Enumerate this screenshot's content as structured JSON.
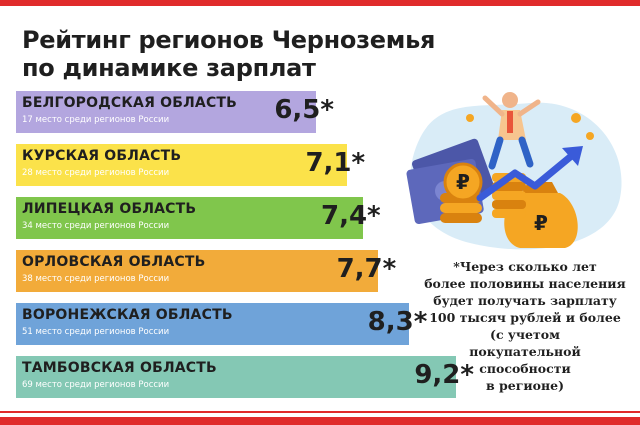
{
  "title": {
    "line1": "Рейтинг регионов Черноземья",
    "line2": "по динамике зарплат"
  },
  "chart_data": {
    "type": "bar",
    "orientation": "horizontal",
    "categories": [
      "БЕЛГОРОДСКАЯ ОБЛАСТЬ",
      "КУРСКАЯ ОБЛАСТЬ",
      "ЛИПЕЦКАЯ ОБЛАСТЬ",
      "ОРЛОВСКАЯ ОБЛАСТЬ",
      "ВОРОНЕЖСКАЯ ОБЛАСТЬ",
      "ТАМБОВСКАЯ ОБЛАСТЬ"
    ],
    "values": [
      6.5,
      7.1,
      7.4,
      7.7,
      8.3,
      9.2
    ],
    "value_labels": [
      "6,5*",
      "7,1*",
      "7,4*",
      "7,7*",
      "8,3*",
      "9,2*"
    ],
    "ranks": [
      "17 место среди регионов России",
      "28  место среди регионов России",
      "34 место среди регионов России",
      "38 место среди регионов России",
      "51 место среди регионов России",
      "69 место среди регионов России"
    ],
    "colors": [
      "#b3a6df",
      "#fbe24a",
      "#80c64c",
      "#f2ab3a",
      "#6fa3d9",
      "#84c8b4"
    ]
  },
  "note": {
    "lines": [
      "*Через сколько лет",
      "более половины населения",
      "будет получать зарплату",
      "100 тысяч рублей и более",
      "(с учетом",
      "покупательной",
      "способности",
      "в регионе)"
    ]
  },
  "illustration": {
    "coin_symbol": "₽",
    "colors": {
      "blob": "#d9ecf7",
      "coin": "#f5a623",
      "coin_dark": "#d9820f",
      "arrow": "#3a5bd9",
      "money": "#4c57a8",
      "person_shirt": "#f7c58f",
      "person_pants": "#2f63c6"
    }
  },
  "theme": {
    "stripe": "#e02b2b",
    "rank_text": "#ffffff",
    "main_text": "#1f1f1f"
  }
}
